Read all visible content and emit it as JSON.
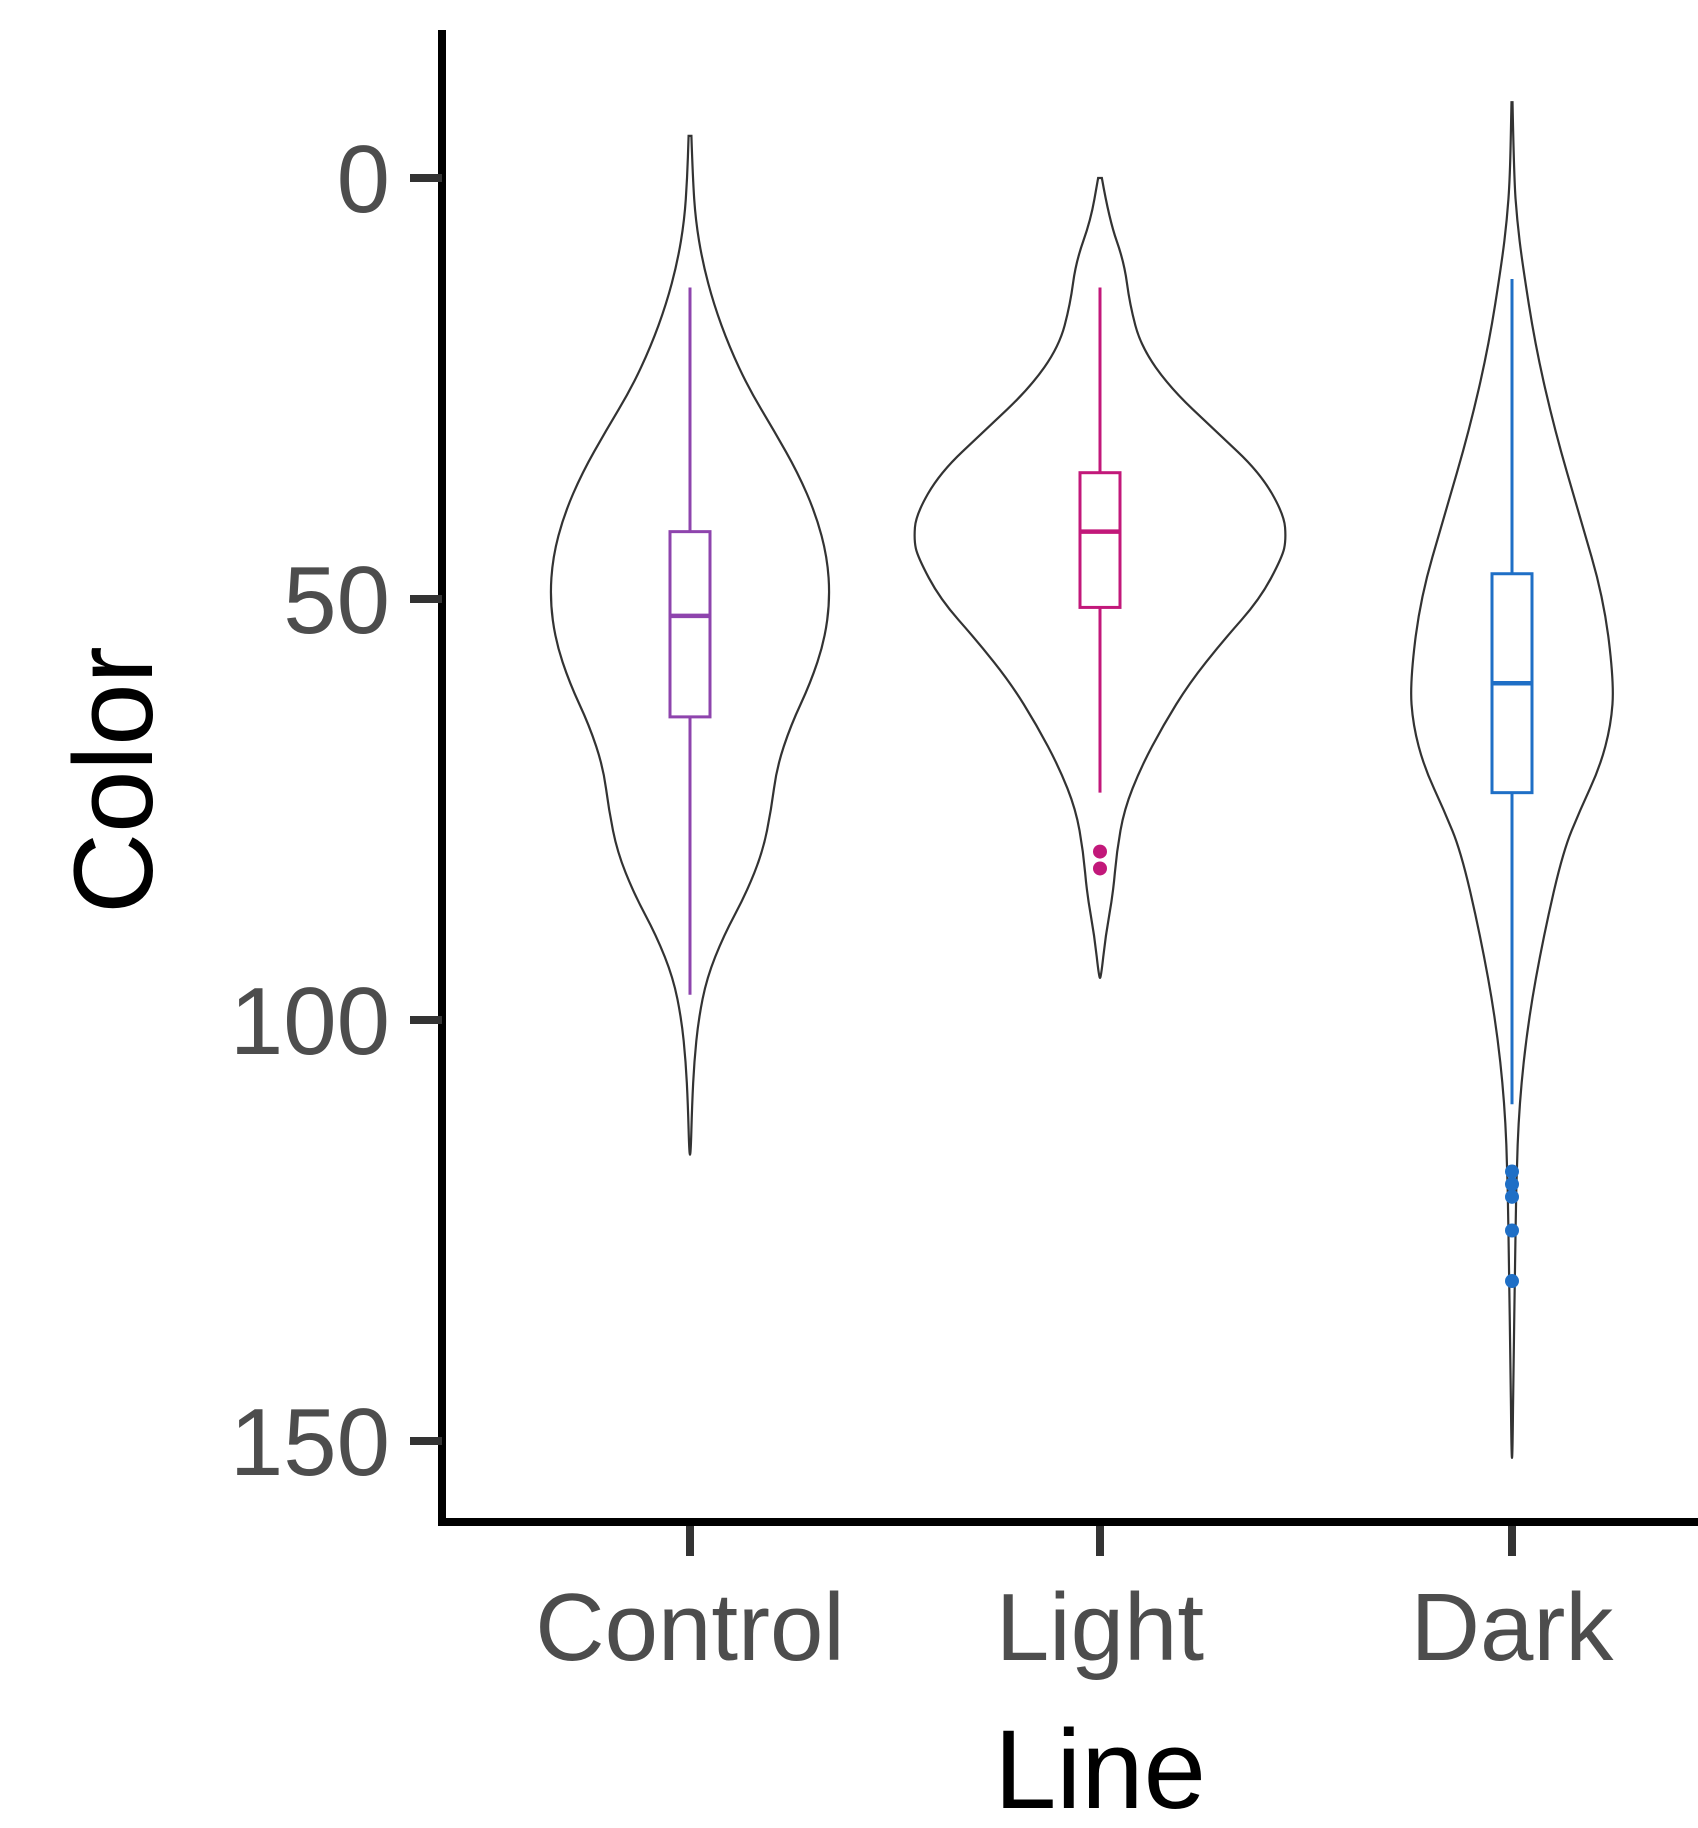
{
  "chart_data": {
    "type": "violin",
    "xlabel": "Line",
    "ylabel": "Color",
    "y_axis_reversed": true,
    "ylim": [
      -17,
      160
    ],
    "yticks": [
      0,
      50,
      100,
      150
    ],
    "categories": [
      "Control",
      "Light",
      "Dark"
    ],
    "grid": false,
    "legend": "none",
    "series": [
      {
        "category": "Control",
        "color": "#8e44ad",
        "box": {
          "whisker_low": 13,
          "q1": 42,
          "median": 52,
          "q3": 64,
          "whisker_high": 97
        },
        "outliers": [],
        "violin_range": [
          -5,
          116
        ],
        "density": [
          [
            -5,
            0.01
          ],
          [
            0,
            0.02
          ],
          [
            5,
            0.04
          ],
          [
            10,
            0.09
          ],
          [
            15,
            0.17
          ],
          [
            20,
            0.28
          ],
          [
            25,
            0.42
          ],
          [
            30,
            0.6
          ],
          [
            35,
            0.77
          ],
          [
            40,
            0.9
          ],
          [
            45,
            0.98
          ],
          [
            50,
            1.0
          ],
          [
            55,
            0.96
          ],
          [
            60,
            0.86
          ],
          [
            65,
            0.72
          ],
          [
            70,
            0.62
          ],
          [
            75,
            0.58
          ],
          [
            80,
            0.52
          ],
          [
            85,
            0.4
          ],
          [
            90,
            0.24
          ],
          [
            95,
            0.12
          ],
          [
            100,
            0.06
          ],
          [
            105,
            0.03
          ],
          [
            110,
            0.015
          ],
          [
            116,
            0.005
          ]
        ]
      },
      {
        "category": "Light",
        "color": "#c2187a",
        "box": {
          "whisker_low": 13,
          "q1": 35,
          "median": 42,
          "q3": 51,
          "whisker_high": 73
        },
        "outliers": [
          80,
          82
        ],
        "violin_range": [
          0,
          95
        ],
        "density": [
          [
            0,
            0.01
          ],
          [
            5,
            0.05
          ],
          [
            10,
            0.13
          ],
          [
            15,
            0.16
          ],
          [
            20,
            0.22
          ],
          [
            25,
            0.38
          ],
          [
            30,
            0.62
          ],
          [
            35,
            0.86
          ],
          [
            40,
            0.99
          ],
          [
            43,
            1.0
          ],
          [
            45,
            0.98
          ],
          [
            50,
            0.86
          ],
          [
            55,
            0.66
          ],
          [
            60,
            0.48
          ],
          [
            65,
            0.34
          ],
          [
            70,
            0.22
          ],
          [
            75,
            0.13
          ],
          [
            80,
            0.09
          ],
          [
            85,
            0.07
          ],
          [
            90,
            0.03
          ],
          [
            95,
            0.005
          ]
        ]
      },
      {
        "category": "Dark",
        "color": "#1f6fc6",
        "box": {
          "whisker_low": 12,
          "q1": 47,
          "median": 60,
          "q3": 73,
          "whisker_high": 110
        },
        "outliers": [
          118,
          119.5,
          121,
          125,
          131
        ],
        "violin_range": [
          -9,
          152
        ],
        "density": [
          [
            -9,
            0.005
          ],
          [
            0,
            0.02
          ],
          [
            5,
            0.05
          ],
          [
            10,
            0.1
          ],
          [
            20,
            0.23
          ],
          [
            30,
            0.42
          ],
          [
            40,
            0.66
          ],
          [
            50,
            0.9
          ],
          [
            60,
            1.0
          ],
          [
            65,
            0.97
          ],
          [
            70,
            0.86
          ],
          [
            75,
            0.67
          ],
          [
            80,
            0.5
          ],
          [
            90,
            0.31
          ],
          [
            100,
            0.16
          ],
          [
            110,
            0.07
          ],
          [
            120,
            0.04
          ],
          [
            130,
            0.03
          ],
          [
            140,
            0.015
          ],
          [
            152,
            0.005
          ]
        ]
      }
    ]
  }
}
